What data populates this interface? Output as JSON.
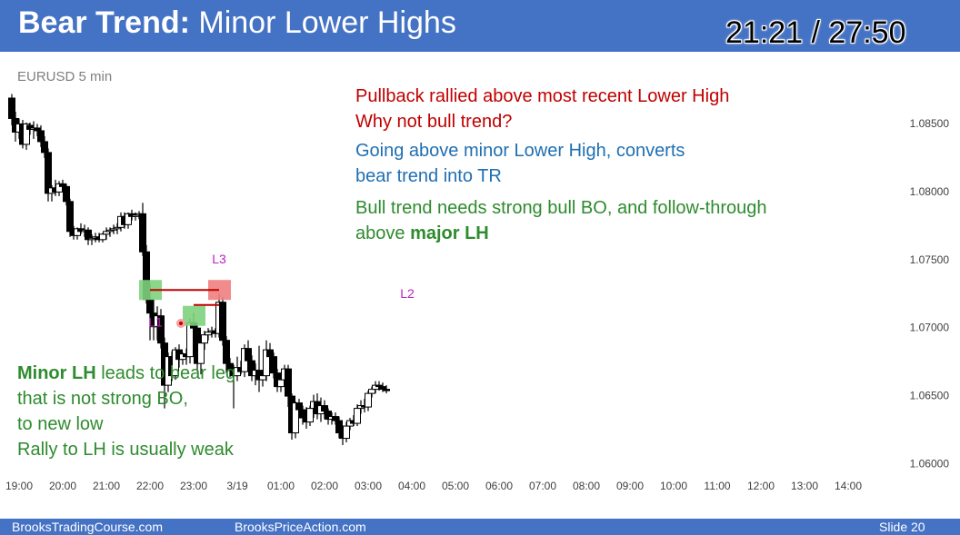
{
  "slide": {
    "title_bold": "Bear Trend:",
    "title_rest": " Minor Lower Highs",
    "timer": "21:21 / 27:50",
    "symbol": "EURUSD 5 min",
    "notes": {
      "red": [
        "Pullback rallied above most recent Lower High",
        "Why not bull trend?"
      ],
      "blue": [
        "Going above minor Lower High, converts",
        "bear trend into TR"
      ],
      "green_line1": "Bull trend needs strong bull BO, and follow-through",
      "green_line2_pre": "above ",
      "green_line2_bold": "major LH",
      "left_bold": "Minor LH",
      "left_rest": " leads to bear leg",
      "left_lines": [
        "that is not strong BO,",
        "to new low",
        "Rally to LH is usually weak"
      ]
    },
    "footer": {
      "left": "BrooksTradingCourse.com",
      "center": "BrooksPriceAction.com",
      "right": "Slide  20"
    }
  },
  "colors": {
    "title_bar": "#4472c4",
    "red_note": "#c00000",
    "blue_note": "#1f6fb2",
    "green_note": "#2e8b2e",
    "label_magenta": "#c020c0",
    "lh_line": "#c00000",
    "green_box": "#7fd17f",
    "red_box": "#f08080"
  },
  "chart_data": {
    "type": "candlestick",
    "ylim": [
      1.0593,
      1.088
    ],
    "y_ticks": [
      1.085,
      1.08,
      1.075,
      1.07,
      1.065,
      1.06
    ],
    "y_tick_labels": [
      "1.08500",
      "1.08000",
      "1.07500",
      "1.07000",
      "1.06500",
      "1.06000"
    ],
    "x_labels": [
      "19:00",
      "20:00",
      "21:00",
      "22:00",
      "23:00",
      "3/19",
      "01:00",
      "02:00",
      "03:00",
      "04:00",
      "05:00",
      "06:00",
      "07:00",
      "08:00",
      "09:00",
      "10:00",
      "11:00",
      "12:00",
      "13:00",
      "14:00"
    ],
    "x_label_index": [
      2,
      14,
      26,
      38,
      50,
      62,
      74,
      86,
      98,
      110,
      122,
      134,
      146,
      158,
      170,
      182,
      194,
      206,
      218,
      230
    ],
    "bar_spacing_note": "12 bars per hour",
    "candles": [
      [
        1.0868,
        1.0871,
        1.0848,
        1.0853
      ],
      [
        1.0853,
        1.0858,
        1.0836,
        1.0843
      ],
      [
        1.0843,
        1.0853,
        1.0838,
        1.0849
      ],
      [
        1.0849,
        1.0852,
        1.0831,
        1.0834
      ],
      [
        1.0834,
        1.085,
        1.083,
        1.0849
      ],
      [
        1.0848,
        1.085,
        1.0841,
        1.0845
      ],
      [
        1.0845,
        1.0851,
        1.0838,
        1.0846
      ],
      [
        1.0846,
        1.0849,
        1.084,
        1.0844
      ],
      [
        1.0844,
        1.0848,
        1.0832,
        1.0836
      ],
      [
        1.0836,
        1.084,
        1.0824,
        1.0828
      ],
      [
        1.0828,
        1.0831,
        1.0792,
        1.0798
      ],
      [
        1.0798,
        1.0804,
        1.0792,
        1.0802
      ],
      [
        1.0802,
        1.0808,
        1.0796,
        1.0799
      ],
      [
        1.0799,
        1.0807,
        1.0796,
        1.0805
      ],
      [
        1.0805,
        1.0808,
        1.08,
        1.0803
      ],
      [
        1.0803,
        1.0805,
        1.0789,
        1.0792
      ],
      [
        1.0792,
        1.0794,
        1.0766,
        1.077
      ],
      [
        1.077,
        1.0774,
        1.0764,
        1.0767
      ],
      [
        1.0767,
        1.0773,
        1.0764,
        1.0772
      ],
      [
        1.0772,
        1.0776,
        1.0768,
        1.077
      ],
      [
        1.077,
        1.0775,
        1.0766,
        1.0771
      ],
      [
        1.0771,
        1.0773,
        1.076,
        1.0764
      ],
      [
        1.0764,
        1.0768,
        1.076,
        1.0765
      ],
      [
        1.0765,
        1.0769,
        1.0762,
        1.0766
      ],
      [
        1.0766,
        1.0769,
        1.0762,
        1.0764
      ],
      [
        1.0764,
        1.0769,
        1.0762,
        1.0768
      ],
      [
        1.0768,
        1.0773,
        1.0764,
        1.077
      ],
      [
        1.077,
        1.0773,
        1.0766,
        1.0771
      ],
      [
        1.0771,
        1.0775,
        1.0768,
        1.0772
      ],
      [
        1.0772,
        1.0776,
        1.0768,
        1.0773
      ],
      [
        1.0773,
        1.0784,
        1.077,
        1.0781
      ],
      [
        1.0781,
        1.0784,
        1.0772,
        1.0775
      ],
      [
        1.0775,
        1.0784,
        1.0772,
        1.0783
      ],
      [
        1.0783,
        1.0786,
        1.0778,
        1.0781
      ],
      [
        1.0781,
        1.0784,
        1.0778,
        1.0782
      ],
      [
        1.0782,
        1.0785,
        1.0779,
        1.0783
      ],
      [
        1.0783,
        1.0791,
        1.0752,
        1.0755
      ],
      [
        1.0755,
        1.076,
        1.0717,
        1.072
      ],
      [
        1.072,
        1.0732,
        1.069,
        1.071
      ],
      [
        1.071,
        1.072,
        1.069,
        1.07
      ],
      [
        1.07,
        1.0715,
        1.069,
        1.0708
      ],
      [
        1.0708,
        1.0713,
        1.0684,
        1.0688
      ],
      [
        1.0688,
        1.0692,
        1.064,
        1.0657
      ],
      [
        1.0657,
        1.0681,
        1.0652,
        1.0678
      ],
      [
        1.0678,
        1.0682,
        1.066,
        1.0664
      ],
      [
        1.0664,
        1.0685,
        1.0661,
        1.0683
      ],
      [
        1.0683,
        1.0687,
        1.067,
        1.0676
      ],
      [
        1.0676,
        1.0681,
        1.0672,
        1.068
      ],
      [
        1.068,
        1.0684,
        1.0672,
        1.0678
      ],
      [
        1.0678,
        1.0706,
        1.0673,
        1.0703
      ],
      [
        1.0703,
        1.071,
        1.0694,
        1.0699
      ],
      [
        1.0699,
        1.0702,
        1.0667,
        1.0673
      ],
      [
        1.0673,
        1.069,
        1.0665,
        1.0688
      ],
      [
        1.0688,
        1.0697,
        1.0683,
        1.0694
      ],
      [
        1.0694,
        1.0699,
        1.069,
        1.0696
      ],
      [
        1.0696,
        1.07,
        1.0692,
        1.0697
      ],
      [
        1.0697,
        1.0699,
        1.0692,
        1.0695
      ],
      [
        1.0695,
        1.0724,
        1.0692,
        1.0718
      ],
      [
        1.0718,
        1.0722,
        1.0686,
        1.069
      ],
      [
        1.069,
        1.0693,
        1.0666,
        1.0673
      ],
      [
        1.0673,
        1.0677,
        1.0663,
        1.0668
      ],
      [
        1.0668,
        1.0672,
        1.064,
        1.0664
      ],
      [
        1.0664,
        1.0678,
        1.066,
        1.067
      ],
      [
        1.067,
        1.0675,
        1.0665,
        1.0667
      ],
      [
        1.0667,
        1.0687,
        1.0663,
        1.0684
      ],
      [
        1.0684,
        1.069,
        1.067,
        1.0675
      ],
      [
        1.0675,
        1.0679,
        1.066,
        1.0664
      ],
      [
        1.0664,
        1.0673,
        1.0657,
        1.0668
      ],
      [
        1.0668,
        1.0686,
        1.0652,
        1.0661
      ],
      [
        1.0661,
        1.0667,
        1.0656,
        1.0664
      ],
      [
        1.0664,
        1.069,
        1.066,
        1.0683
      ],
      [
        1.0683,
        1.0688,
        1.0674,
        1.0678
      ],
      [
        1.0678,
        1.0681,
        1.0662,
        1.0666
      ],
      [
        1.0666,
        1.0669,
        1.0652,
        1.0656
      ],
      [
        1.0656,
        1.0664,
        1.0652,
        1.0661
      ],
      [
        1.0661,
        1.0672,
        1.0657,
        1.0669
      ],
      [
        1.0669,
        1.0672,
        1.0641,
        1.0649
      ],
      [
        1.0649,
        1.0651,
        1.0617,
        1.0622
      ],
      [
        1.0622,
        1.0645,
        1.0618,
        1.0644
      ],
      [
        1.0644,
        1.0647,
        1.0634,
        1.0639
      ],
      [
        1.0639,
        1.0642,
        1.0628,
        1.0633
      ],
      [
        1.0633,
        1.0641,
        1.0625,
        1.063
      ],
      [
        1.063,
        1.0642,
        1.0627,
        1.064
      ],
      [
        1.064,
        1.065,
        1.0633,
        1.0645
      ],
      [
        1.0645,
        1.0651,
        1.0632,
        1.0636
      ],
      [
        1.0636,
        1.0648,
        1.063,
        1.0642
      ],
      [
        1.0642,
        1.0646,
        1.0632,
        1.0638
      ],
      [
        1.0638,
        1.064,
        1.0628,
        1.0632
      ],
      [
        1.0632,
        1.0637,
        1.0628,
        1.0634
      ],
      [
        1.0634,
        1.0637,
        1.0628,
        1.0631
      ],
      [
        1.0631,
        1.0634,
        1.0618,
        1.0622
      ],
      [
        1.0622,
        1.0625,
        1.0613,
        1.0618
      ],
      [
        1.0618,
        1.063,
        1.0615,
        1.0627
      ],
      [
        1.0627,
        1.0633,
        1.0624,
        1.0631
      ],
      [
        1.0631,
        1.0635,
        1.0627,
        1.0629
      ],
      [
        1.0629,
        1.0643,
        1.0627,
        1.064
      ],
      [
        1.064,
        1.0646,
        1.0636,
        1.0642
      ],
      [
        1.0642,
        1.0647,
        1.0637,
        1.0641
      ],
      [
        1.0641,
        1.0653,
        1.0638,
        1.0651
      ],
      [
        1.0651,
        1.0656,
        1.0648,
        1.0654
      ],
      [
        1.0654,
        1.066,
        1.0651,
        1.0657
      ],
      [
        1.0657,
        1.066,
        1.0653,
        1.0656
      ],
      [
        1.0656,
        1.0659,
        1.0652,
        1.0654
      ],
      [
        1.0654,
        1.0657,
        1.0651,
        1.0653
      ]
    ],
    "annotations": [
      {
        "label": "L1",
        "text_color": "#c020c0",
        "box": "green",
        "bar": 50,
        "price": 1.0708
      },
      {
        "label": "L2",
        "text_color": "#c020c0",
        "box": "green",
        "bar": 38,
        "price": 1.0727
      },
      {
        "label": "L3",
        "text_color": "#c020c0",
        "box": "red",
        "bar": 57,
        "price": 1.0727
      }
    ],
    "lines": [
      {
        "name": "L2 level",
        "from_bar": 38,
        "to_bar": 57,
        "price": 1.0727,
        "color": "#c00000"
      },
      {
        "name": "L1 level",
        "from_bar": 50,
        "to_bar": 57,
        "price": 1.0716,
        "color": "#c00000"
      }
    ]
  }
}
